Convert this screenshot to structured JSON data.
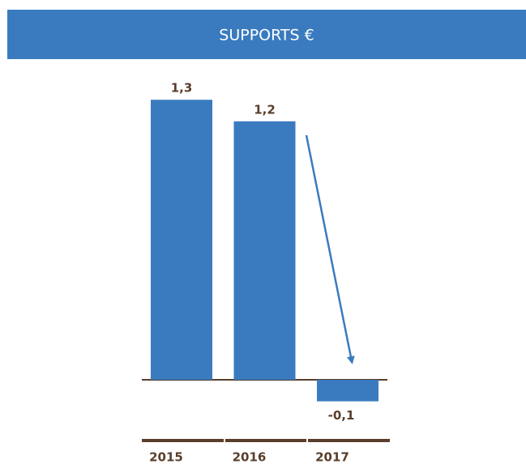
{
  "chart_data": {
    "type": "bar",
    "title": "SUPPORTS €",
    "categories": [
      "2015",
      "2016",
      "2017"
    ],
    "values": [
      1.3,
      1.2,
      -0.1
    ],
    "value_labels": [
      "1,3",
      "1,2",
      "-0,1"
    ],
    "color": "#3a7bbf"
  }
}
